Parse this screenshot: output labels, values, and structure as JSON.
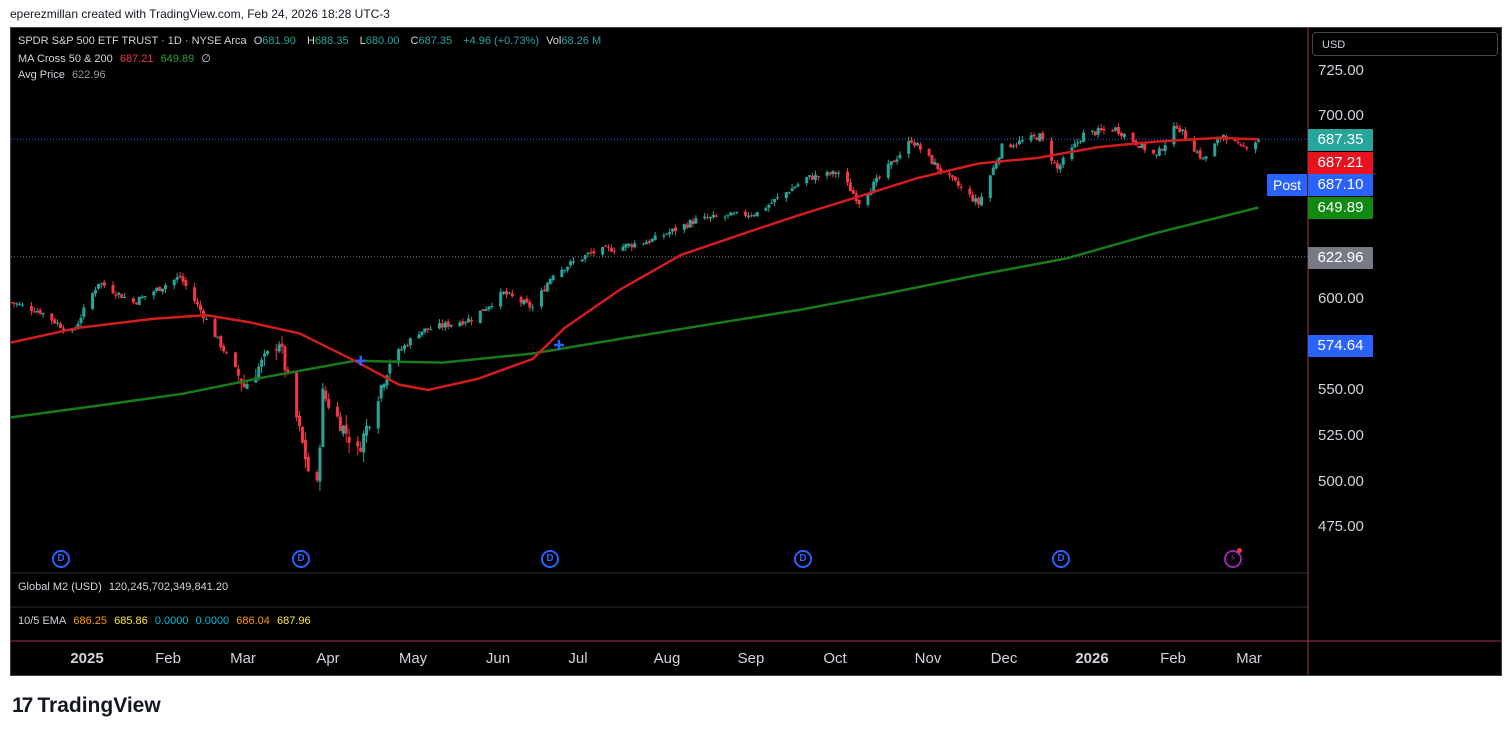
{
  "caption": "eperezmillan created with TradingView.com, Feb 24, 2026 18:28 UTC-3",
  "brand": "TradingView",
  "brand_logo": "17",
  "colors": {
    "up": "#26a69a",
    "down": "#f23645",
    "ma50": "#d11d1d",
    "ma200": "#1a7a1a",
    "accent": "#2962ff"
  },
  "legend": {
    "symbol": "SPDR S&P 500 ETF TRUST · 1D · NYSE Arca",
    "o_label": "O",
    "o": "681.90",
    "h_label": "H",
    "h": "688.35",
    "l_label": "L",
    "l": "680.00",
    "c_label": "C",
    "c": "687.35",
    "change": "+4.96 (+0.73%)",
    "vol_label": "Vol",
    "vol": "68.26 M",
    "ma_name": "MA Cross 50 & 200",
    "ma50": "687.21",
    "ma200": "649.89",
    "ma_icon": "∅",
    "avg_name": "Avg Price",
    "avg": "622.96"
  },
  "pane2": {
    "name": "Global M2 (USD)",
    "value": "120,245,702,349,841.20"
  },
  "pane3": {
    "name": "10/5 EMA",
    "v1": "686.25",
    "v2": "685.86",
    "v3": "0.0000",
    "v4": "0.0000",
    "v5": "686.04",
    "v6": "687.96"
  },
  "currency": "USD",
  "price_axis": [
    "725.00",
    "700.00",
    "600.00",
    "550.00",
    "525.00",
    "500.00",
    "475.00"
  ],
  "price_tags": {
    "last": "687.35",
    "ma50": "687.21",
    "post": "687.10",
    "ma200": "649.89",
    "avg": "622.96",
    "cross": "574.64",
    "post_label": "Post"
  },
  "time_axis": [
    "2025",
    "Feb",
    "Mar",
    "Apr",
    "May",
    "Jun",
    "Jul",
    "Aug",
    "Sep",
    "Oct",
    "Nov",
    "Dec",
    "2026",
    "Feb",
    "Mar"
  ],
  "dividend_marker": "D",
  "chart_data": {
    "type": "candlestick",
    "ylim": [
      460,
      735
    ],
    "x_range": [
      "2024-12-23",
      "2026-03-13"
    ],
    "ma50_points": [
      [
        "2024-12-23",
        576
      ],
      [
        "2025-01-15",
        584
      ],
      [
        "2025-02-10",
        589
      ],
      [
        "2025-02-28",
        591
      ],
      [
        "2025-03-15",
        587
      ],
      [
        "2025-04-01",
        581
      ],
      [
        "2025-04-20",
        566
      ],
      [
        "2025-05-05",
        553
      ],
      [
        "2025-05-15",
        550
      ],
      [
        "2025-06-01",
        556
      ],
      [
        "2025-06-20",
        567
      ],
      [
        "2025-07-01",
        584
      ],
      [
        "2025-07-20",
        605
      ],
      [
        "2025-08-10",
        624
      ],
      [
        "2025-09-01",
        636
      ],
      [
        "2025-09-20",
        646
      ],
      [
        "2025-10-10",
        656
      ],
      [
        "2025-10-30",
        666
      ],
      [
        "2025-11-20",
        674
      ],
      [
        "2025-12-10",
        677
      ],
      [
        "2025-12-31",
        683
      ],
      [
        "2026-01-20",
        686
      ],
      [
        "2026-02-10",
        688
      ],
      [
        "2026-02-24",
        687.21
      ]
    ],
    "ma200_points": [
      [
        "2024-12-23",
        535
      ],
      [
        "2025-01-20",
        541
      ],
      [
        "2025-02-20",
        548
      ],
      [
        "2025-03-20",
        557
      ],
      [
        "2025-04-20",
        566
      ],
      [
        "2025-05-20",
        565
      ],
      [
        "2025-06-20",
        570
      ],
      [
        "2025-07-20",
        578
      ],
      [
        "2025-08-20",
        586
      ],
      [
        "2025-09-20",
        594
      ],
      [
        "2025-10-20",
        603
      ],
      [
        "2025-11-20",
        613
      ],
      [
        "2025-12-20",
        622
      ],
      [
        "2026-01-20",
        636
      ],
      [
        "2026-02-24",
        649.89
      ]
    ],
    "crosses": [
      [
        "2025-04-22",
        566
      ],
      [
        "2025-06-29",
        574.64
      ]
    ],
    "avg_price": 622.96,
    "last_price": 687.35,
    "dividends": [
      "2024-12-20",
      "2025-03-21",
      "2025-06-20",
      "2025-09-19",
      "2025-12-19"
    ],
    "price_path": [
      [
        "2024-12-23",
        598
      ],
      [
        "2025-01-02",
        593
      ],
      [
        "2025-01-13",
        581
      ],
      [
        "2025-01-22",
        609
      ],
      [
        "2025-02-03",
        598
      ],
      [
        "2025-02-19",
        612
      ],
      [
        "2025-02-27",
        591
      ],
      [
        "2025-03-10",
        561
      ],
      [
        "2025-03-13",
        552
      ],
      [
        "2025-03-25",
        577
      ],
      [
        "2025-04-04",
        506
      ],
      [
        "2025-04-07",
        497
      ],
      [
        "2025-04-09",
        548
      ],
      [
        "2025-04-21",
        516
      ],
      [
        "2025-05-02",
        566
      ],
      [
        "2025-05-12",
        582
      ],
      [
        "2025-05-30",
        589
      ],
      [
        "2025-06-10",
        603
      ],
      [
        "2025-06-20",
        595
      ],
      [
        "2025-06-27",
        614
      ],
      [
        "2025-07-10",
        625
      ],
      [
        "2025-07-31",
        632
      ],
      [
        "2025-08-15",
        643
      ],
      [
        "2025-09-05",
        647
      ],
      [
        "2025-09-22",
        666
      ],
      [
        "2025-10-03",
        669
      ],
      [
        "2025-10-10",
        653
      ],
      [
        "2025-10-28",
        687
      ],
      [
        "2025-11-07",
        670
      ],
      [
        "2025-11-20",
        652
      ],
      [
        "2025-11-28",
        683
      ],
      [
        "2025-12-11",
        689
      ],
      [
        "2025-12-17",
        671
      ],
      [
        "2025-12-26",
        690
      ],
      [
        "2026-01-06",
        693
      ],
      [
        "2026-01-20",
        678
      ],
      [
        "2026-01-27",
        695
      ],
      [
        "2026-02-05",
        676
      ],
      [
        "2026-02-12",
        690
      ],
      [
        "2026-02-18",
        682
      ],
      [
        "2026-02-24",
        687.35
      ]
    ]
  }
}
